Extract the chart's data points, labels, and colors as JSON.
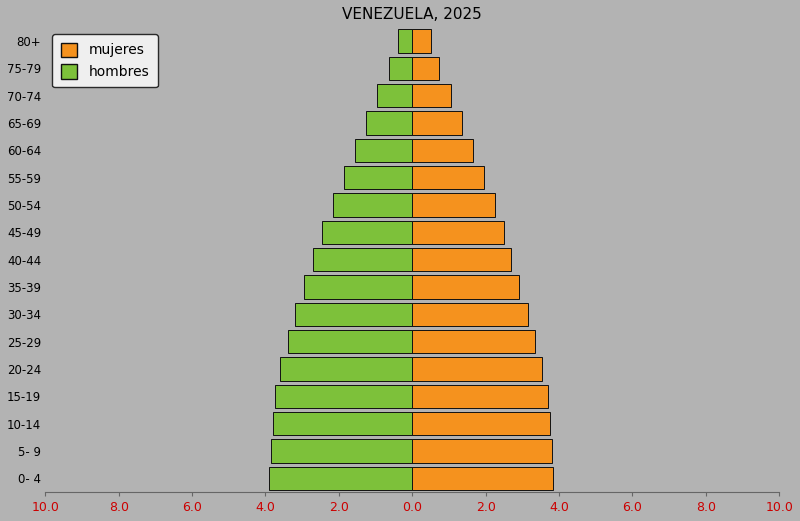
{
  "title": "VENEZUELA, 2025",
  "age_groups": [
    "0- 4",
    "5- 9",
    "10-14",
    "15-19",
    "20-24",
    "25-29",
    "30-34",
    "35-39",
    "40-44",
    "45-49",
    "50-54",
    "55-59",
    "60-64",
    "65-69",
    "70-74",
    "75-79",
    "80+"
  ],
  "hombres": [
    3.9,
    3.85,
    3.8,
    3.75,
    3.6,
    3.4,
    3.2,
    2.95,
    2.7,
    2.45,
    2.15,
    1.85,
    1.55,
    1.25,
    0.95,
    0.62,
    0.38
  ],
  "mujeres": [
    3.85,
    3.8,
    3.75,
    3.7,
    3.55,
    3.35,
    3.15,
    2.9,
    2.7,
    2.5,
    2.25,
    1.95,
    1.65,
    1.35,
    1.05,
    0.72,
    0.5
  ],
  "hombres_color": "#7dc13a",
  "mujeres_color": "#f5921e",
  "background_color": "#b3b3b3",
  "fig_background_color": "#c8c8c8",
  "xlim": [
    -10,
    10
  ],
  "xticks": [
    -10,
    -8,
    -6,
    -4,
    -2,
    0,
    2,
    4,
    6,
    8,
    10
  ],
  "xtick_labels": [
    "10.0",
    "8.0",
    "6.0",
    "4.0",
    "2.0",
    "0.0",
    "2.0",
    "4.0",
    "6.0",
    "8.0",
    "10.0"
  ],
  "xtick_color": "#cc0000",
  "bar_height": 0.85,
  "edgecolor": "#111111",
  "title_fontsize": 11,
  "tick_fontsize": 9,
  "ylabel_fontsize": 8.5
}
